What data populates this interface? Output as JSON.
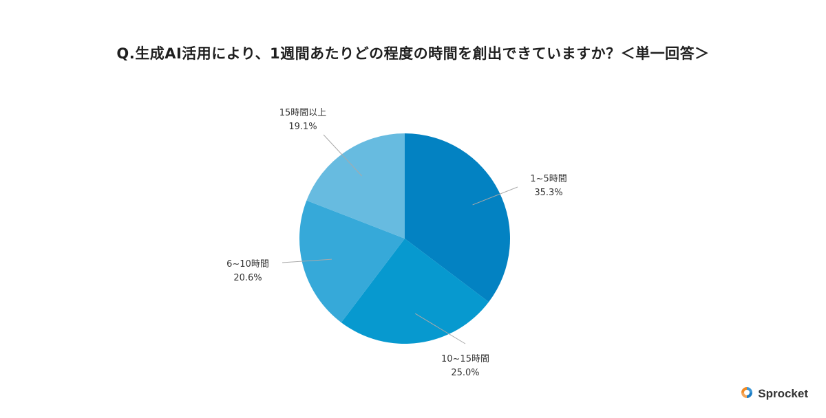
{
  "chart_data": {
    "type": "pie",
    "title": "Q.生成AI活用により、1週間あたりどの程度の時間を創出できていますか？＜単一回答＞",
    "slices": [
      {
        "label": "1~5時間",
        "value": 35.3,
        "value_label": "35.3%",
        "color": "#0382c2"
      },
      {
        "label": "10~15時間",
        "value": 25.0,
        "value_label": "25.0%",
        "color": "#0799cf"
      },
      {
        "label": "6~10時間",
        "value": 20.6,
        "value_label": "20.6%",
        "color": "#36a9d9"
      },
      {
        "label": "15時間以上",
        "value": 19.1,
        "value_label": "19.1%",
        "color": "#67bbe0"
      }
    ],
    "start": "12 o'clock",
    "direction": "clockwise"
  },
  "brand": {
    "name": "Sprocket",
    "colors": {
      "orange": "#f08a24",
      "blue": "#1c7cc4"
    }
  }
}
